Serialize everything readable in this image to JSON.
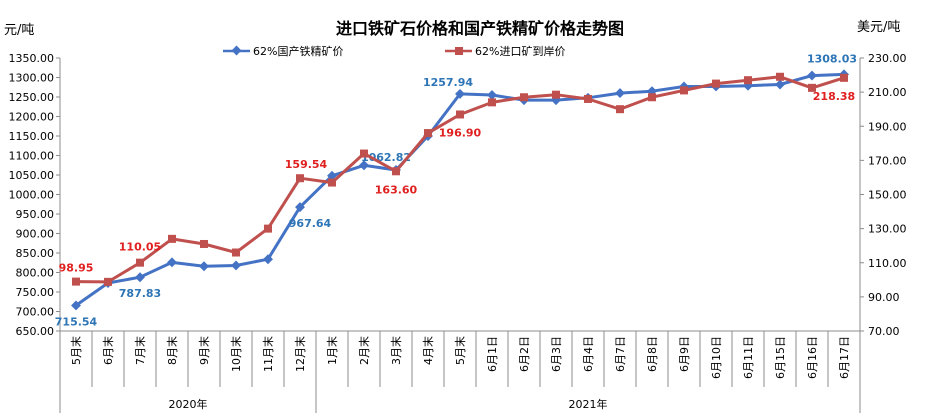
{
  "chart_data": {
    "type": "line",
    "title": "进口铁矿石价格和国产铁精矿价格走势图",
    "left_axis_unit": "元/吨",
    "right_axis_unit": "美元/吨",
    "categories": [
      "5月末",
      "6月末",
      "7月末",
      "8月末",
      "9月末",
      "10月末",
      "11月末",
      "12月末",
      "1月末",
      "2月末",
      "3月末",
      "4月末",
      "5月末",
      "6月1日",
      "6月2日",
      "6月3日",
      "6月4日",
      "6月7日",
      "6月8日",
      "6月9日",
      "6月10日",
      "6月11日",
      "6月15日",
      "6月16日",
      "6月17日"
    ],
    "year_groups": [
      {
        "label": "2020年",
        "start": 0,
        "end": 7
      },
      {
        "label": "2021年",
        "start": 8,
        "end": 24
      }
    ],
    "left_axis": {
      "min": 650,
      "max": 1350,
      "step": 50,
      "ticks": [
        "650.00",
        "700.00",
        "750.00",
        "800.00",
        "850.00",
        "900.00",
        "950.00",
        "1000.00",
        "1050.00",
        "1100.00",
        "1150.00",
        "1200.00",
        "1250.00",
        "1300.00",
        "1350.00"
      ]
    },
    "right_axis": {
      "min": 70,
      "max": 230,
      "step": 20,
      "ticks": [
        "70.00",
        "90.00",
        "110.00",
        "130.00",
        "150.00",
        "170.00",
        "190.00",
        "210.00",
        "230.00"
      ]
    },
    "series": [
      {
        "name": "62%国产铁精矿价",
        "axis": "left",
        "color": "#4472C4",
        "label_color": "#2E75B6",
        "values": [
          715.54,
          773,
          787.83,
          826,
          816,
          818,
          834,
          967.64,
          1048,
          1075,
          1062.82,
          1150,
          1257.94,
          1255,
          1242,
          1242,
          1248,
          1260,
          1265,
          1277,
          1277,
          1279,
          1282,
          1305,
          1308.03
        ],
        "labels": [
          {
            "i": 0,
            "text": "715.54"
          },
          {
            "i": 2,
            "text": "787.83"
          },
          {
            "i": 7,
            "text": "967.64"
          },
          {
            "i": 10,
            "text": "1062.82"
          },
          {
            "i": 12,
            "text": "1257.94"
          },
          {
            "i": 24,
            "text": "1308.03"
          }
        ]
      },
      {
        "name": "62%进口矿到岸价",
        "axis": "right",
        "color": "#C0504D",
        "label_color": "#E02020",
        "values": [
          98.95,
          98.8,
          110.05,
          124,
          121,
          116,
          130,
          159.54,
          157,
          174,
          163.6,
          186,
          196.9,
          204,
          207,
          208.5,
          206,
          200,
          207,
          211,
          215,
          217,
          219,
          212.5,
          218.38
        ],
        "labels": [
          {
            "i": 0,
            "text": "98.95"
          },
          {
            "i": 2,
            "text": "110.05"
          },
          {
            "i": 7,
            "text": "159.54"
          },
          {
            "i": 10,
            "text": "163.60"
          },
          {
            "i": 12,
            "text": "196.90"
          },
          {
            "i": 24,
            "text": "218.38"
          }
        ]
      }
    ]
  }
}
